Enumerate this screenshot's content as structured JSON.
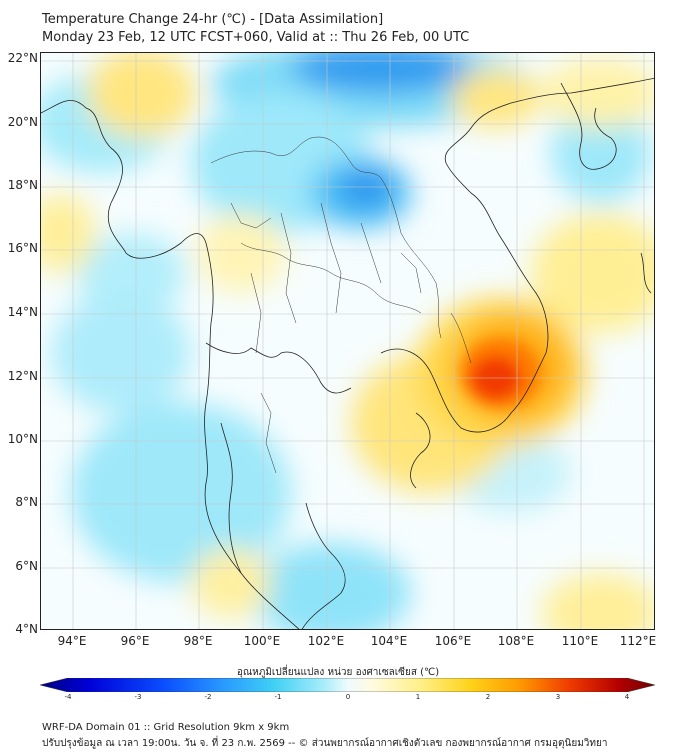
{
  "header": {
    "title_line1": "Temperature Change 24-hr (℃) - [Data Assimilation]",
    "title_line2": "Monday 23 Feb, 12 UTC FCST+060, Valid at :: Thu 26 Feb, 00 UTC"
  },
  "map": {
    "lat_labels": [
      "22°N",
      "20°N",
      "18°N",
      "16°N",
      "14°N",
      "12°N",
      "10°N",
      "8°N",
      "6°N",
      "4°N"
    ],
    "lon_labels": [
      "94°E",
      "96°E",
      "98°E",
      "100°E",
      "102°E",
      "104°E",
      "106°E",
      "108°E",
      "110°E",
      "112°E"
    ],
    "features": [
      "warm-anomaly-cambodia",
      "cold-anomaly-north-laos",
      "cold-anomaly-south-china",
      "warm-anomaly-north-myanmar"
    ]
  },
  "colorbar": {
    "title": "อุณหภูมิเปลี่ยนแปลง หน่วย องศาเซลเซียส (℃)",
    "tick_labels": [
      "-4",
      "-3",
      "-2",
      "-1",
      "0",
      "1",
      "2",
      "3",
      "4"
    ],
    "min": -4,
    "max": 4,
    "colors": [
      "#00007f",
      "#0000d8",
      "#0a4dff",
      "#2a9bff",
      "#3fd0f5",
      "#a6ecfa",
      "#eefbfd",
      "#fffbe0",
      "#ffef86",
      "#ffd21a",
      "#ff9a00",
      "#f03c00",
      "#b50000",
      "#6e0000"
    ]
  },
  "footer": {
    "line1": "WRF-DA Domain 01 :: Grid Resolution 9km x 9km",
    "line2": "ปรับปรุงข้อมูล ณ เวลา 19:00น. วัน จ. ที่ 23 ก.พ. 2569 -- © ส่วนพยากรณ์อากาศเชิงตัวเลข กองพยากรณ์อากาศ กรมอุตุนิยมวิทยา"
  }
}
